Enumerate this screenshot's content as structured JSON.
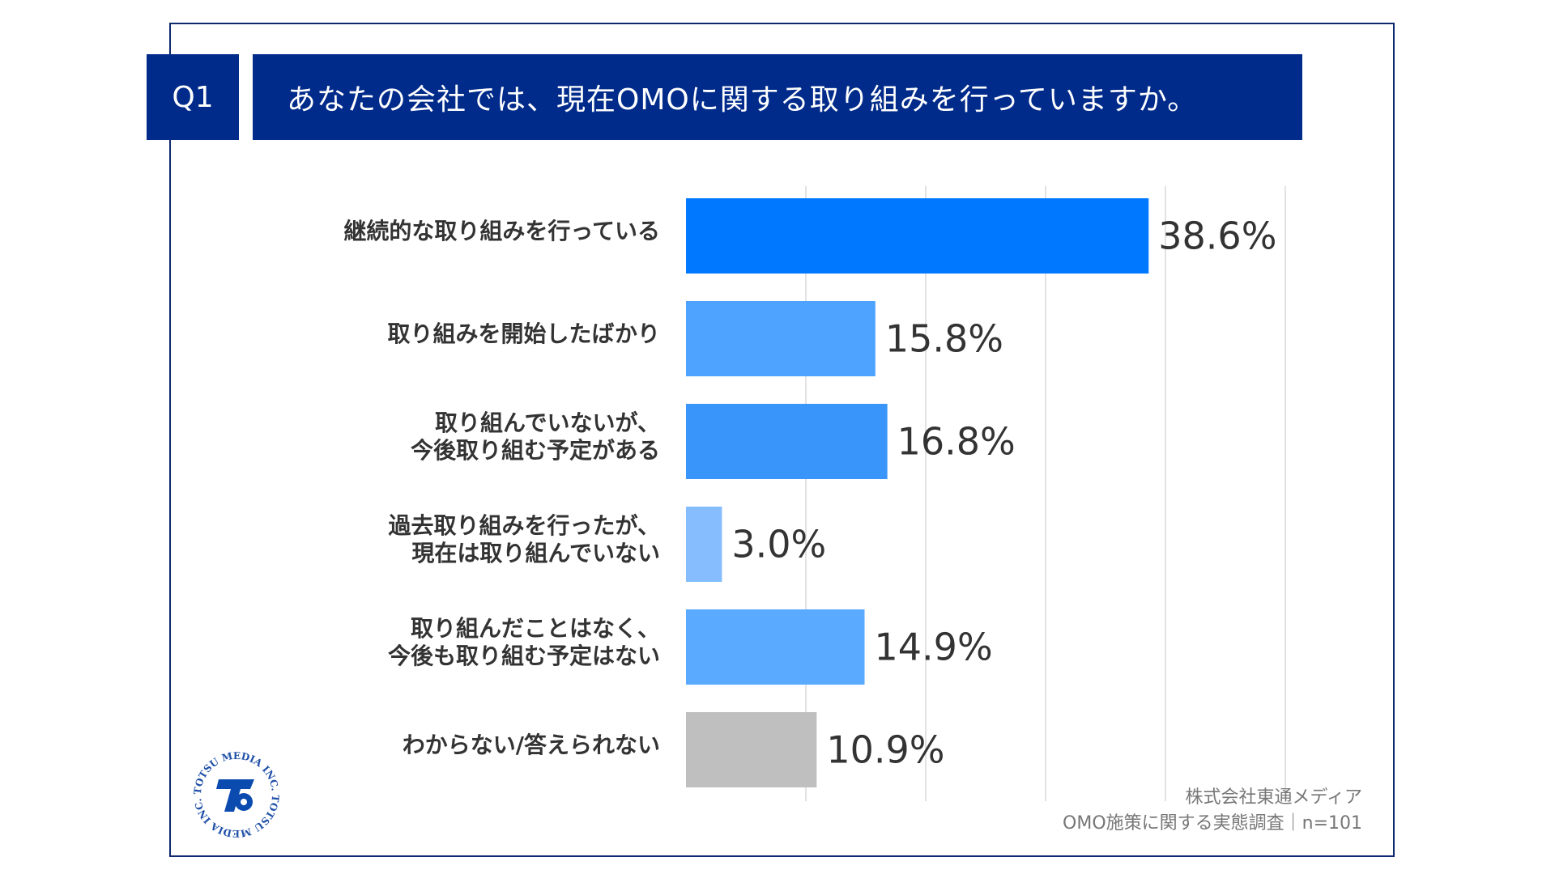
{
  "header": {
    "q_label": "Q1",
    "question": "あなたの会社では、現在OMOに関する取り組みを行っていますか。"
  },
  "chart_data": {
    "type": "bar",
    "orientation": "horizontal",
    "categories": [
      "継続的な取り組みを行っている",
      "取り組みを開始したばかり",
      "取り組んでいないが、\n今後取り組む予定がある",
      "過去取り組みを行ったが、\n現在は取り組んでいない",
      "取り組んだことはなく、\n今後も取り組む予定はない",
      "わからない/答えられない"
    ],
    "values": [
      38.6,
      15.8,
      16.8,
      3.0,
      14.9,
      10.9
    ],
    "value_labels": [
      "38.6%",
      "15.8%",
      "16.8%",
      "3.0%",
      "14.9%",
      "10.9%"
    ],
    "colors": [
      "#0078ff",
      "#4da3ff",
      "#3a95fa",
      "#85bdff",
      "#5aaaff",
      "#bfbfbf"
    ],
    "xlim": [
      0,
      50
    ],
    "grid_step": 10,
    "grid": true
  },
  "footer": {
    "company": "株式会社東通メディア",
    "survey": "OMO施策に関する実態調査｜n=101"
  },
  "logo": {
    "text": "TOTSU MEDIA INC."
  }
}
